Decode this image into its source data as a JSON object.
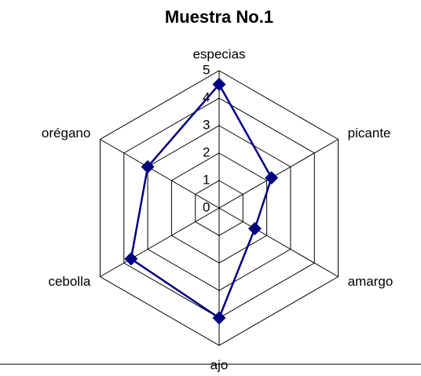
{
  "chart_data": {
    "type": "radar",
    "title": "Muestra No.1",
    "categories": [
      "especias",
      "picante",
      "amargo",
      "ajo",
      "cebolla",
      "orégano"
    ],
    "series": [
      {
        "color": "#000080",
        "values": [
          4.5,
          2.2,
          1.5,
          4,
          3.7,
          3
        ]
      }
    ],
    "ylim": [
      0,
      5
    ],
    "yticks": [
      0,
      1,
      2,
      3,
      4,
      5
    ],
    "grid": true
  }
}
